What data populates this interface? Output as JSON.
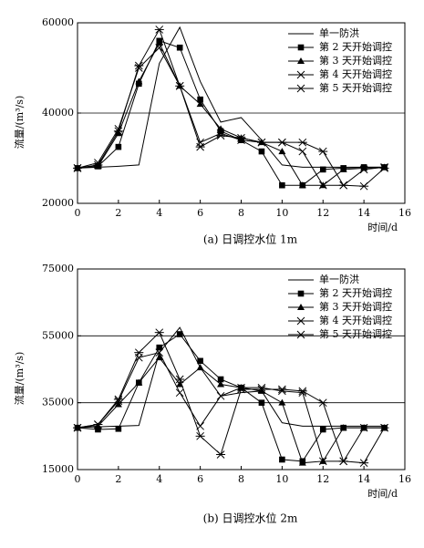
{
  "chart_data": [
    {
      "type": "line",
      "title": "(a) 日调控水位 1m",
      "y_label": "流量/(m³/s)",
      "x_label": "时间/d",
      "x": [
        0,
        1,
        2,
        3,
        4,
        5,
        6,
        7,
        8,
        9,
        10,
        11,
        12,
        13,
        14,
        15
      ],
      "xlim": [
        0,
        16
      ],
      "xticks": [
        0,
        2,
        4,
        6,
        8,
        10,
        12,
        14,
        16
      ],
      "ylim": [
        20000,
        60000
      ],
      "yticks": [
        20000,
        40000,
        60000
      ],
      "grid": true,
      "legend": "upper right",
      "series": [
        {
          "name": "单一防洪",
          "color": "#000000",
          "marker": "none",
          "values": [
            27800,
            28000,
            28200,
            28500,
            51000,
            59000,
            47000,
            38000,
            39000,
            34000,
            28500,
            28000,
            28000,
            28000,
            28000,
            28000
          ]
        },
        {
          "name": "第 2 天开始调控",
          "color": "#000000",
          "marker": "square",
          "values": [
            27800,
            28200,
            32500,
            46500,
            56000,
            54500,
            43000,
            36000,
            34000,
            31500,
            24000,
            24000,
            27500,
            27800,
            28000,
            28000
          ]
        },
        {
          "name": "第 3 天开始调控",
          "color": "#000000",
          "marker": "triangle",
          "values": [
            27800,
            28200,
            35500,
            47000,
            55500,
            46000,
            42000,
            36500,
            34500,
            33500,
            31500,
            24000,
            24000,
            27500,
            27800,
            28000
          ]
        },
        {
          "name": "第 4 天开始调控",
          "color": "#000000",
          "marker": "x",
          "values": [
            27800,
            29000,
            36500,
            50000,
            54500,
            46000,
            33500,
            35500,
            34000,
            33500,
            33500,
            31500,
            24000,
            24000,
            27500,
            28000
          ]
        },
        {
          "name": "第 5 天开始调控",
          "color": "#000000",
          "marker": "asterisk",
          "values": [
            27800,
            28500,
            36000,
            50500,
            58500,
            46000,
            32500,
            35000,
            34500,
            33500,
            33500,
            33500,
            31500,
            24000,
            23800,
            27800
          ]
        }
      ]
    },
    {
      "type": "line",
      "title": "(b) 日调控水位 2m",
      "y_label": "流量/(m³/s)",
      "x_label": "时间/d",
      "x": [
        0,
        1,
        2,
        3,
        4,
        5,
        6,
        7,
        8,
        9,
        10,
        11,
        12,
        13,
        14,
        15
      ],
      "xlim": [
        0,
        16
      ],
      "xticks": [
        0,
        2,
        4,
        6,
        8,
        10,
        12,
        14,
        16
      ],
      "ylim": [
        15000,
        75000
      ],
      "yticks": [
        15000,
        35000,
        55000,
        75000
      ],
      "grid": true,
      "legend": "upper right",
      "series": [
        {
          "name": "单一防洪",
          "color": "#000000",
          "marker": "none",
          "values": [
            27500,
            27800,
            28000,
            28200,
            50000,
            57500,
            45500,
            37000,
            38000,
            38500,
            29000,
            28000,
            28000,
            28000,
            28000,
            28000
          ]
        },
        {
          "name": "第 2 天开始调控",
          "color": "#000000",
          "marker": "square",
          "values": [
            27500,
            27000,
            27200,
            41000,
            51500,
            55500,
            47500,
            42000,
            39500,
            35000,
            18000,
            17500,
            27000,
            27500,
            27500,
            27500
          ]
        },
        {
          "name": "第 3 天开始调控",
          "color": "#000000",
          "marker": "triangle",
          "values": [
            27500,
            28000,
            34500,
            41000,
            48500,
            40500,
            45500,
            40500,
            39500,
            38500,
            35000,
            17000,
            17500,
            27500,
            27500,
            27500
          ]
        },
        {
          "name": "第 4 天开始调控",
          "color": "#000000",
          "marker": "x",
          "values": [
            27500,
            28500,
            35500,
            48500,
            50000,
            38000,
            28000,
            37000,
            39500,
            39500,
            38500,
            38000,
            17500,
            17500,
            27500,
            27500
          ]
        },
        {
          "name": "第 5 天开始调控",
          "color": "#000000",
          "marker": "asterisk",
          "values": [
            27500,
            28500,
            36000,
            50000,
            56000,
            42000,
            25000,
            19500,
            39000,
            39000,
            39000,
            38500,
            35000,
            17500,
            17000,
            27500
          ]
        }
      ]
    }
  ]
}
